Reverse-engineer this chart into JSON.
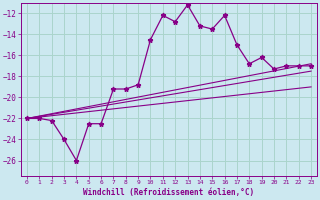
{
  "xlabel": "Windchill (Refroidissement éolien,°C)",
  "bg_color": "#cce8f0",
  "grid_color": "#aad4cc",
  "line_color": "#880088",
  "x_ticks": [
    0,
    1,
    2,
    3,
    4,
    5,
    6,
    7,
    8,
    9,
    10,
    11,
    12,
    13,
    14,
    15,
    16,
    17,
    18,
    19,
    20,
    21,
    22,
    23
  ],
  "y_ticks": [
    -26,
    -24,
    -22,
    -20,
    -18,
    -16,
    -14,
    -12
  ],
  "ylim": [
    -27.5,
    -11.0
  ],
  "xlim": [
    -0.5,
    23.5
  ],
  "main_line_x": [
    0,
    1,
    2,
    3,
    4,
    5,
    6,
    7,
    8,
    9,
    10,
    11,
    12,
    13,
    14,
    15,
    16,
    17,
    18,
    19,
    20,
    21,
    22,
    23
  ],
  "main_line_y": [
    -22,
    -22,
    -22.2,
    -24,
    -26,
    -22.5,
    -22.5,
    -19.2,
    -19.2,
    -18.8,
    -14.5,
    -12.2,
    -12.8,
    -11.2,
    -13.2,
    -13.5,
    -12.2,
    -15,
    -16.8,
    -16.2,
    -17.3,
    -17,
    -17,
    -17
  ],
  "reg_lines": [
    {
      "x": [
        0,
        23
      ],
      "y": [
        -22.0,
        -16.8
      ]
    },
    {
      "x": [
        0,
        23
      ],
      "y": [
        -22.0,
        -17.5
      ]
    },
    {
      "x": [
        0,
        23
      ],
      "y": [
        -22.0,
        -19.0
      ]
    }
  ]
}
